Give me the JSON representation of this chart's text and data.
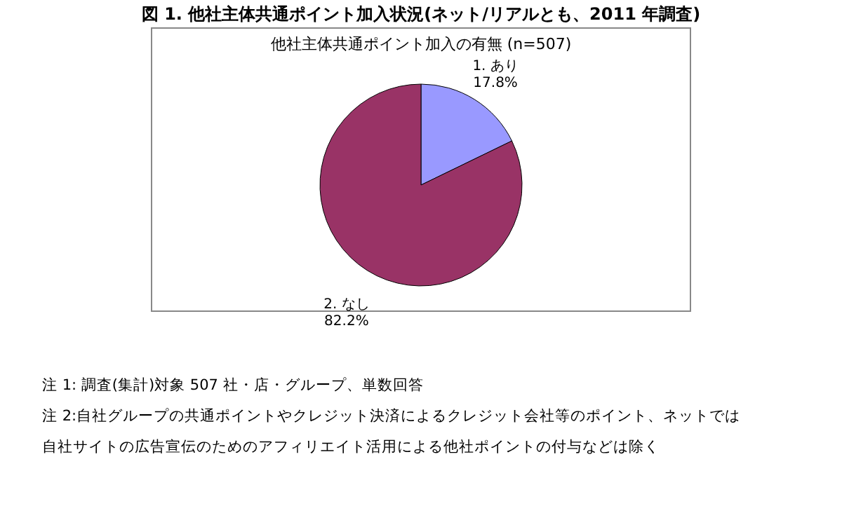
{
  "chart_data": {
    "type": "pie",
    "title": "図 1.  他社主体共通ポイント加入状況(ネット/リアルとも、2011 年調査)",
    "subtitle": "他社主体共通ポイント加入の有無 (n=507)",
    "categories": [
      "1. あり",
      "2. なし"
    ],
    "values": [
      17.8,
      82.2
    ],
    "colors": [
      "#9999ff",
      "#993366"
    ],
    "value_labels": [
      "17.8%",
      "82.2%"
    ],
    "annotations": [
      "注 1: 調査(集計)対象 507 社・店・グループ、単数回答",
      "注 2:自社グループの共通ポイントやクレジット決済によるクレジット会社等のポイント、ネットでは自社サイトの広告宣伝のためのアフィリエイト活用による他社ポイントの付与などは除く"
    ]
  }
}
